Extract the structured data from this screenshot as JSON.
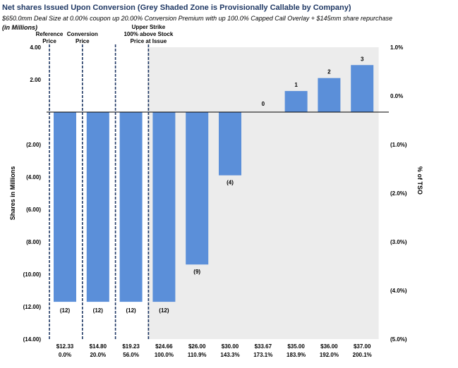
{
  "header": {
    "title": "Net shares Issued Upon Conversion (Grey Shaded Zone is Provisionally Callable by Company)",
    "subtitle": "$650.0mm Deal Size at 0.00% coupon up 20.00% Conversion Premium with up 100.0% Capped Call Overlay + $145mm share repurchase",
    "units": "(in Millions)"
  },
  "chart_data": {
    "type": "bar",
    "title": "Net shares Issued Upon Conversion (Grey Shaded Zone is Provisionally Callable by Company)",
    "ylabel": "Shares in Millions",
    "y2label": "% of TSO",
    "ylim": [
      -14,
      4
    ],
    "y2lim": [
      -5.0,
      1.0
    ],
    "yticks": [
      4,
      2,
      0,
      -2,
      -4,
      -6,
      -8,
      -10,
      -12,
      -14
    ],
    "ytick_labels": [
      "4.00",
      "2.00",
      "",
      "(2.00)",
      "(4.00)",
      "(6.00)",
      "(8.00)",
      "(10.00)",
      "(12.00)",
      "(14.00)"
    ],
    "y2ticks": [
      1.0,
      0.0,
      -1.0,
      -2.0,
      -3.0,
      -4.0,
      -5.0
    ],
    "y2tick_labels": [
      "1.0%",
      "0.0%",
      "(1.0%)",
      "(2.0%)",
      "(3.0%)",
      "(4.0%)",
      "(5.0%)"
    ],
    "categories": [
      "$12.33",
      "$14.80",
      "$19.23",
      "$24.66",
      "$26.00",
      "$30.00",
      "$33.67",
      "$35.00",
      "$36.00",
      "$37.00"
    ],
    "category_sublabels": [
      "0.0%",
      "20.0%",
      "56.0%",
      "100.0%",
      "110.9%",
      "143.3%",
      "173.1%",
      "183.9%",
      "192.0%",
      "200.1%"
    ],
    "values": [
      -11.7,
      -11.7,
      -11.7,
      -11.7,
      -9.4,
      -3.9,
      0,
      1.3,
      2.1,
      2.9
    ],
    "data_labels": [
      "(12)",
      "(12)",
      "(12)",
      "(12)",
      "(9)",
      "(4)",
      "0",
      "1",
      "2",
      "3"
    ],
    "bar_color": "#5b8fd9",
    "shaded_region": {
      "from_category_index": 2.5,
      "to_category_index": 9.5,
      "color": "#ececec"
    },
    "reference_lines": [
      {
        "at_category_index": 0,
        "label_lines": [
          "Reference",
          "Price"
        ],
        "color": "#1f3864"
      },
      {
        "at_category_index": 1,
        "label_lines": [
          "Conversion",
          "Price"
        ],
        "color": "#1f3864"
      },
      {
        "at_category_index": 2,
        "label_lines": [],
        "color": "#1f3864"
      },
      {
        "at_category_index": 3,
        "label_lines": [
          "Upper Strike",
          "100% above Stock",
          "Price at Issue"
        ],
        "color": "#1f3864"
      }
    ],
    "grid": false,
    "legend": "none"
  }
}
